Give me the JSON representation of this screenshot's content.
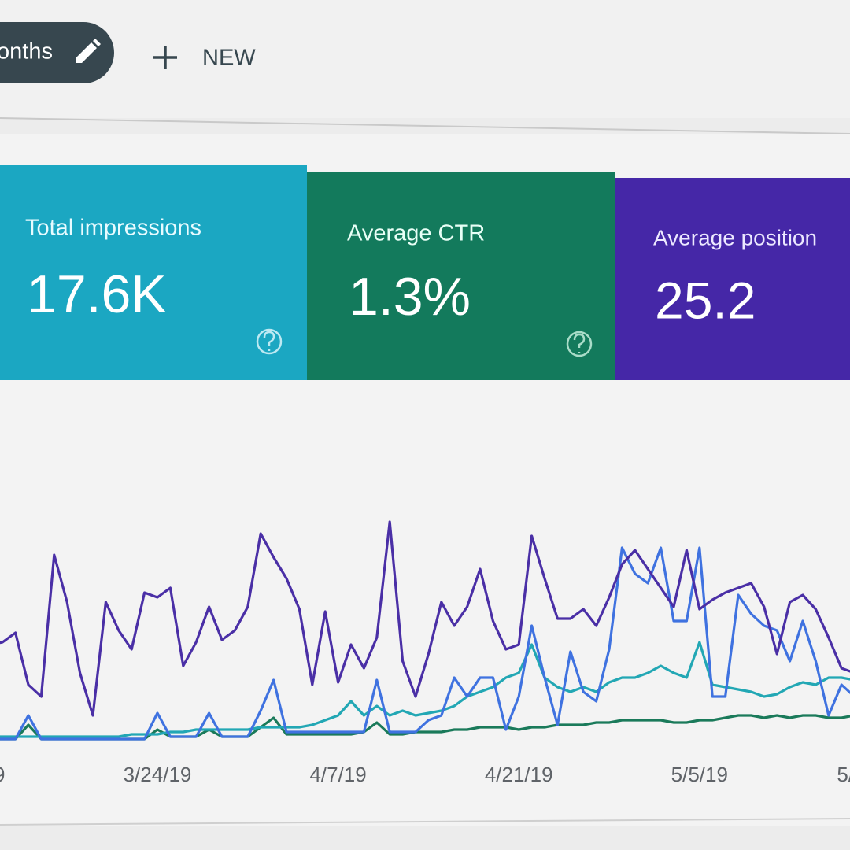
{
  "toolbar": {
    "date_chip": "onths",
    "new_button": "NEW"
  },
  "metrics": [
    {
      "label": "Total impressions",
      "value": "17.6K"
    },
    {
      "label": "Average CTR",
      "value": "1.3%"
    },
    {
      "label": "Average position",
      "value": "25.2"
    }
  ],
  "chart_data": {
    "type": "line",
    "categories": [
      "9",
      null,
      null,
      null,
      null,
      null,
      null,
      null,
      null,
      null,
      null,
      null,
      null,
      null,
      "3/24/19",
      null,
      null,
      null,
      null,
      null,
      null,
      null,
      null,
      null,
      null,
      null,
      null,
      null,
      "4/7/19",
      null,
      null,
      null,
      null,
      null,
      null,
      null,
      null,
      null,
      null,
      null,
      null,
      null,
      "4/21/19",
      null,
      null,
      null,
      null,
      null,
      null,
      null,
      null,
      null,
      null,
      null,
      null,
      null,
      "5/5/19",
      null,
      null,
      null,
      null,
      null,
      null,
      null,
      null,
      null,
      null,
      null,
      null,
      null,
      "5/"
    ],
    "ylim": [
      0,
      100
    ],
    "series": [
      {
        "color": "#1a7a5a",
        "values": [
          2,
          2,
          2,
          2,
          8,
          2,
          2,
          2,
          2,
          2,
          2,
          2,
          2,
          2,
          6,
          3,
          3,
          3,
          6,
          3,
          3,
          3,
          7,
          11,
          4,
          4,
          4,
          4,
          4,
          4,
          5,
          9,
          4,
          4,
          5,
          5,
          5,
          6,
          6,
          7,
          7,
          7,
          6,
          7,
          7,
          8,
          8,
          8,
          9,
          9,
          10,
          10,
          10,
          10,
          9,
          9,
          10,
          10,
          11,
          12,
          12,
          11,
          12,
          11,
          12,
          12,
          11,
          11,
          12,
          12,
          12
        ]
      },
      {
        "color": "#22a7b4",
        "values": [
          3,
          3,
          3,
          3,
          3,
          3,
          3,
          3,
          3,
          3,
          3,
          3,
          4,
          4,
          4,
          5,
          5,
          6,
          6,
          6,
          6,
          6,
          7,
          7,
          7,
          7,
          8,
          10,
          12,
          18,
          12,
          16,
          12,
          14,
          12,
          13,
          14,
          16,
          20,
          22,
          24,
          28,
          30,
          42,
          28,
          24,
          22,
          24,
          22,
          26,
          28,
          28,
          30,
          33,
          30,
          28,
          43,
          25,
          24,
          23,
          22,
          20,
          21,
          24,
          26,
          25,
          28,
          28,
          27,
          28,
          28
        ]
      },
      {
        "color": "#3f72e0",
        "values": [
          2,
          2,
          2,
          2,
          12,
          2,
          2,
          2,
          2,
          2,
          2,
          2,
          2,
          2,
          13,
          3,
          3,
          3,
          13,
          3,
          3,
          3,
          14,
          27,
          5,
          5,
          5,
          5,
          5,
          5,
          5,
          27,
          5,
          5,
          5,
          10,
          12,
          28,
          20,
          28,
          28,
          6,
          20,
          50,
          28,
          8,
          39,
          22,
          18,
          40,
          83,
          72,
          68,
          83,
          52,
          52,
          83,
          20,
          20,
          63,
          55,
          50,
          48,
          35,
          52,
          35,
          12,
          25,
          20,
          18,
          18
        ]
      },
      {
        "color": "#4a2fa6",
        "values": [
          40,
          42,
          43,
          47,
          25,
          20,
          80,
          60,
          30,
          12,
          60,
          48,
          40,
          64,
          62,
          66,
          33,
          43,
          58,
          44,
          48,
          58,
          89,
          79,
          70,
          57,
          25,
          56,
          26,
          42,
          32,
          45,
          94,
          35,
          20,
          38,
          60,
          50,
          58,
          74,
          52,
          40,
          42,
          88,
          70,
          53,
          53,
          57,
          50,
          62,
          76,
          82,
          74,
          66,
          58,
          82,
          57,
          61,
          64,
          66,
          68,
          58,
          38,
          60,
          63,
          57,
          45,
          32,
          30,
          30,
          28
        ]
      }
    ]
  }
}
